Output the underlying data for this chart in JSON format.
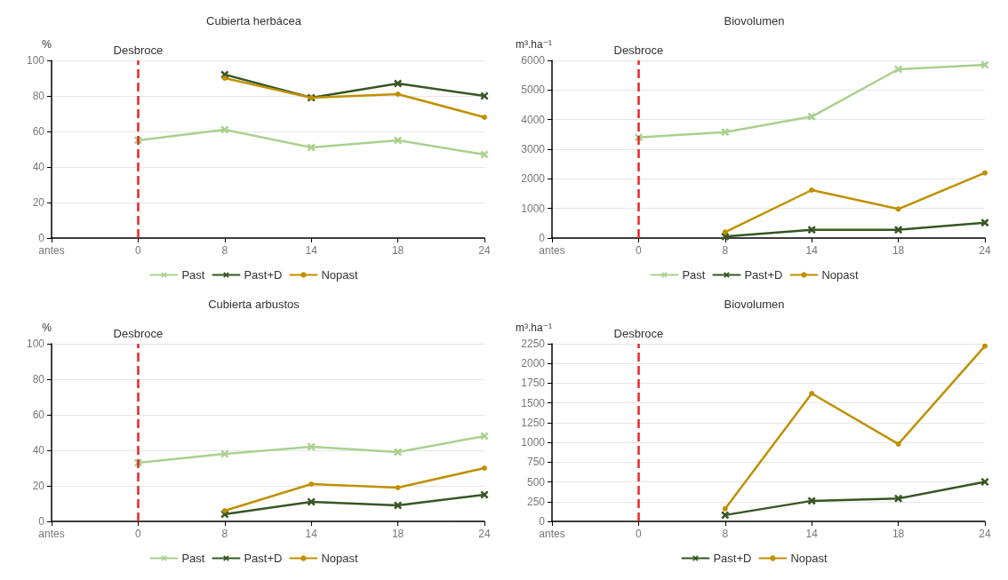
{
  "chart_data": [
    {
      "type": "line",
      "title": "Cubierta herbácea",
      "ylabel": "%",
      "categories": [
        "antes",
        "0",
        "8",
        "14",
        "18",
        "24"
      ],
      "ylim": [
        0,
        100
      ],
      "yticks": [
        0,
        20,
        40,
        60,
        80,
        100
      ],
      "grid": "y",
      "legend": "bottom",
      "line_style": "solid",
      "ref_lines": [
        {
          "axis": "x",
          "value": "0",
          "label": "Desbroce",
          "color": "#e8262a",
          "line_style": "dashed"
        }
      ],
      "series": [
        {
          "name": "Past",
          "color": "#a9d18e",
          "marker": "cross",
          "values": [
            null,
            55,
            61,
            51,
            55,
            47
          ]
        },
        {
          "name": "Past+D",
          "color": "#375623",
          "marker": "cross",
          "values": [
            null,
            null,
            92,
            79,
            87,
            80
          ]
        },
        {
          "name": "Nopast",
          "color": "#c09000",
          "marker": "circle",
          "values": [
            null,
            null,
            90,
            79,
            81,
            68
          ]
        }
      ]
    },
    {
      "type": "line",
      "title": "Biovolumen",
      "ylabel": "m³.ha⁻¹",
      "categories": [
        "antes",
        "0",
        "8",
        "14",
        "18",
        "24"
      ],
      "ylim": [
        0,
        6000
      ],
      "yticks": [
        0,
        1000,
        2000,
        3000,
        4000,
        5000,
        6000
      ],
      "grid": "y",
      "legend": "bottom",
      "line_style": "solid",
      "ref_lines": [
        {
          "axis": "x",
          "value": "0",
          "label": "Desbroce",
          "color": "#e8262a",
          "line_style": "dashed"
        }
      ],
      "series": [
        {
          "name": "Past",
          "color": "#a9d18e",
          "marker": "cross",
          "values": [
            null,
            3400,
            3580,
            4100,
            5700,
            5850
          ]
        },
        {
          "name": "Past+D",
          "color": "#375623",
          "marker": "cross",
          "values": [
            null,
            null,
            50,
            280,
            280,
            520
          ]
        },
        {
          "name": "Nopast",
          "color": "#c09000",
          "marker": "circle",
          "values": [
            null,
            null,
            200,
            1620,
            980,
            2200
          ]
        }
      ]
    },
    {
      "type": "line",
      "title": "Cubierta arbustos",
      "ylabel": "%",
      "categories": [
        "antes",
        "0",
        "8",
        "14",
        "18",
        "24"
      ],
      "ylim": [
        0,
        100
      ],
      "yticks": [
        0,
        20,
        40,
        60,
        80,
        100
      ],
      "grid": "y",
      "legend": "bottom",
      "line_style": "solid",
      "ref_lines": [
        {
          "axis": "x",
          "value": "0",
          "label": "Desbroce",
          "color": "#e8262a",
          "line_style": "dashed"
        }
      ],
      "series": [
        {
          "name": "Past",
          "color": "#a9d18e",
          "marker": "cross",
          "values": [
            null,
            33,
            38,
            42,
            39,
            48
          ]
        },
        {
          "name": "Past+D",
          "color": "#375623",
          "marker": "cross",
          "values": [
            null,
            null,
            4,
            11,
            9,
            15
          ]
        },
        {
          "name": "Nopast",
          "color": "#c09000",
          "marker": "circle",
          "values": [
            null,
            null,
            6,
            21,
            19,
            30
          ]
        }
      ]
    },
    {
      "type": "line",
      "title": "Biovolumen",
      "ylabel": "m³.ha⁻¹",
      "categories": [
        "antes",
        "0",
        "8",
        "14",
        "18",
        "24"
      ],
      "ylim": [
        0,
        2250
      ],
      "yticks": [
        0,
        250,
        500,
        750,
        1000,
        1250,
        1500,
        1750,
        2000,
        2250
      ],
      "grid": "y",
      "legend": "bottom",
      "line_style": "solid",
      "ref_lines": [
        {
          "axis": "x",
          "value": "0",
          "label": "Desbroce",
          "color": "#e8262a",
          "line_style": "dashed"
        }
      ],
      "series": [
        {
          "name": "Past+D",
          "color": "#375623",
          "marker": "cross",
          "values": [
            null,
            null,
            80,
            260,
            290,
            500
          ]
        },
        {
          "name": "Nopast",
          "color": "#c09000",
          "marker": "circle",
          "values": [
            null,
            null,
            160,
            1620,
            980,
            2220
          ]
        }
      ]
    }
  ]
}
